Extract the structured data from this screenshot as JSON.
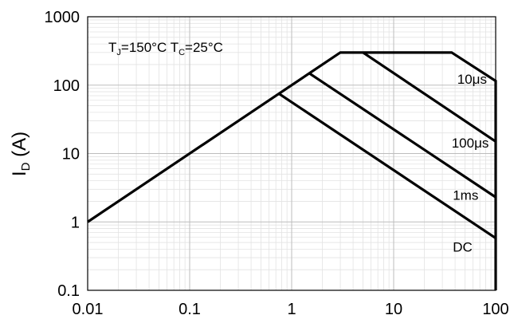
{
  "chart_data": {
    "type": "line",
    "x_scale": "log",
    "y_scale": "log",
    "xlim": [
      0.01,
      100
    ],
    "ylim": [
      0.1,
      1000
    ],
    "grid": true,
    "x_tick_labels": [
      "0.01",
      "0.1",
      "1",
      "10",
      "100"
    ],
    "y_tick_labels": [
      "0.1",
      "1",
      "10",
      "100",
      "1000"
    ],
    "ylabel": {
      "main": "I",
      "sub": "D",
      "rest": " (A)"
    },
    "xlabel": "",
    "condition": {
      "tj_main": "T",
      "tj_sub": "J",
      "tj_rest": "=150°C ",
      "tc_main": "T",
      "tc_sub": "C",
      "tc_rest": "=25°C"
    },
    "series": [
      {
        "label": "10μs",
        "x": [
          0.01,
          3.0,
          37,
          100,
          100
        ],
        "y": [
          1,
          300,
          300,
          115,
          0.1
        ]
      },
      {
        "label": "100μs",
        "x": [
          5.0,
          100
        ],
        "y": [
          300,
          15
        ]
      },
      {
        "label": "1ms",
        "x": [
          1.5,
          100
        ],
        "y": [
          148,
          2.3
        ]
      },
      {
        "label": "DC",
        "x": [
          0.75,
          100
        ],
        "y": [
          75,
          0.58
        ]
      }
    ],
    "annotations": [
      {
        "text": "10μs",
        "x": 42,
        "y": 105
      },
      {
        "text": "100μs",
        "x": 37,
        "y": 12.3
      },
      {
        "text": "1ms",
        "x": 38,
        "y": 2.1
      },
      {
        "text": "DC",
        "x": 38,
        "y": 0.37
      }
    ]
  }
}
